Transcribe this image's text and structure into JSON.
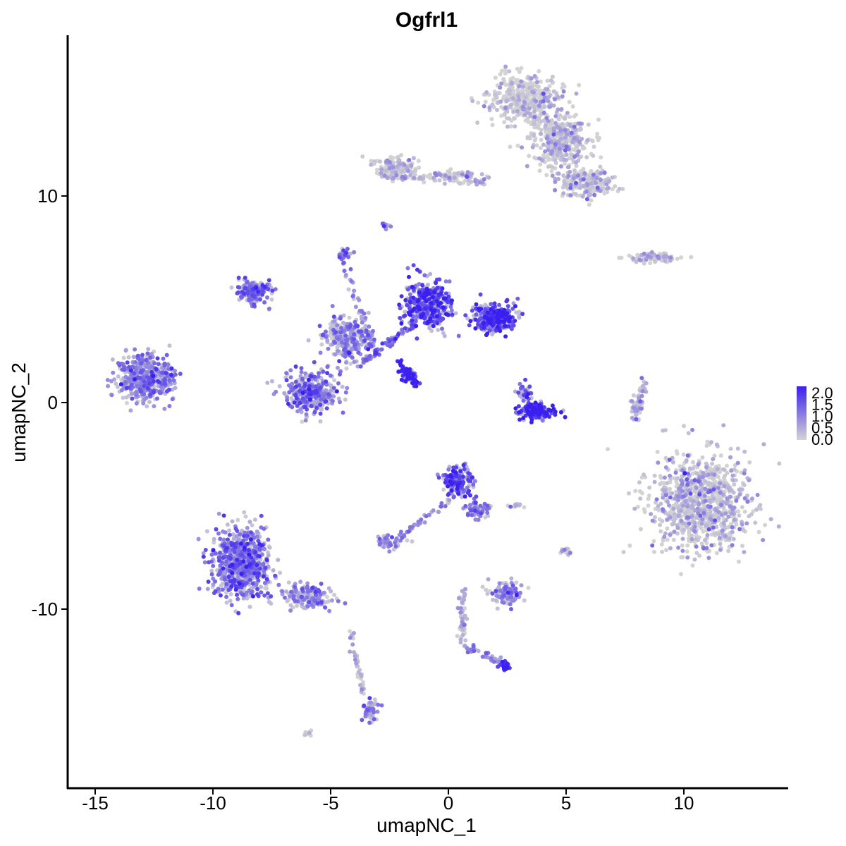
{
  "chart_data": {
    "type": "scatter",
    "title": "Ogfrl1",
    "xlabel": "umapNC_1",
    "ylabel": "umapNC_2",
    "xlim": [
      -16.5,
      14.5
    ],
    "ylim": [
      -18.5,
      17.5
    ],
    "xticks": [
      -15,
      -10,
      -5,
      0,
      5,
      10
    ],
    "xtick_labels": [
      "-15",
      "-10",
      "-5",
      "0",
      "5",
      "10"
    ],
    "yticks": [
      -10,
      0,
      10
    ],
    "ytick_labels": [
      "-10",
      "0",
      "10"
    ],
    "grid": false,
    "legend": {
      "position": "right",
      "type": "color-gradient",
      "labels": [
        "2.0",
        "1.5",
        "1.0",
        "0.5",
        "0.0"
      ],
      "values": [
        2.0,
        1.5,
        1.0,
        0.5,
        0.0
      ]
    },
    "colors": {
      "low": "#d3d3d3",
      "high": "#3a1ff0"
    },
    "expression_range": [
      0,
      2.0
    ],
    "clusters": [
      {
        "center": [
          10.8,
          -4.8
        ],
        "spread": [
          1.9,
          2.1
        ],
        "n": 900,
        "expr": 0.25
      },
      {
        "center": [
          3.3,
          14.6
        ],
        "spread": [
          1.4,
          1.1
        ],
        "n": 420,
        "expr": 0.05
      },
      {
        "center": [
          4.8,
          12.6
        ],
        "spread": [
          1.2,
          1.0
        ],
        "n": 380,
        "expr": 0.15
      },
      {
        "center": [
          5.8,
          10.6
        ],
        "spread": [
          1.0,
          0.6
        ],
        "n": 200,
        "expr": 0.3
      },
      {
        "center": [
          -2.2,
          11.4
        ],
        "spread": [
          0.8,
          0.4
        ],
        "n": 140,
        "expr": 0.05
      },
      {
        "center": [
          0.2,
          11.0
        ],
        "spread": [
          1.2,
          0.2
        ],
        "n": 60,
        "expr": 0.1
      },
      {
        "center": [
          8.8,
          7.0
        ],
        "spread": [
          0.9,
          0.2
        ],
        "n": 90,
        "expr": 0.1
      },
      {
        "center": [
          -13.0,
          1.2
        ],
        "spread": [
          0.9,
          1.0
        ],
        "n": 420,
        "expr": 0.8
      },
      {
        "center": [
          -12.0,
          1.3
        ],
        "spread": [
          0.4,
          0.8
        ],
        "n": 80,
        "expr": 0.9
      },
      {
        "center": [
          -8.2,
          5.4
        ],
        "spread": [
          0.7,
          0.5
        ],
        "n": 200,
        "expr": 1.0
      },
      {
        "center": [
          -5.8,
          0.5
        ],
        "spread": [
          1.0,
          0.9
        ],
        "n": 360,
        "expr": 1.0
      },
      {
        "center": [
          -4.3,
          3.2
        ],
        "spread": [
          1.0,
          1.0
        ],
        "n": 260,
        "expr": 0.8
      },
      {
        "center": [
          -0.9,
          4.8
        ],
        "spread": [
          0.9,
          1.0
        ],
        "n": 380,
        "expr": 1.5
      },
      {
        "center": [
          1.9,
          4.1
        ],
        "spread": [
          0.8,
          0.6
        ],
        "n": 280,
        "expr": 1.6
      },
      {
        "center": [
          -1.7,
          1.3
        ],
        "spread": [
          0.35,
          0.3
        ],
        "n": 40,
        "expr": 1.8
      },
      {
        "center": [
          -4.4,
          7.2
        ],
        "spread": [
          0.3,
          0.2
        ],
        "n": 25,
        "expr": 1.1
      },
      {
        "center": [
          3.7,
          -0.4
        ],
        "spread": [
          0.7,
          0.35
        ],
        "n": 170,
        "expr": 1.9
      },
      {
        "center": [
          3.2,
          0.5
        ],
        "spread": [
          0.3,
          0.4
        ],
        "n": 40,
        "expr": 1.4
      },
      {
        "center": [
          0.4,
          -3.8
        ],
        "spread": [
          0.6,
          0.6
        ],
        "n": 180,
        "expr": 1.3
      },
      {
        "center": [
          1.2,
          -5.2
        ],
        "spread": [
          0.5,
          0.4
        ],
        "n": 60,
        "expr": 1.0
      },
      {
        "center": [
          -2.6,
          -6.8
        ],
        "spread": [
          0.5,
          0.3
        ],
        "n": 50,
        "expr": 0.7
      },
      {
        "center": [
          2.5,
          -9.2
        ],
        "spread": [
          0.6,
          0.5
        ],
        "n": 120,
        "expr": 0.7
      },
      {
        "center": [
          -8.8,
          -7.8
        ],
        "spread": [
          1.1,
          1.5
        ],
        "n": 700,
        "expr": 1.05
      },
      {
        "center": [
          -6.0,
          -9.4
        ],
        "spread": [
          1.0,
          0.5
        ],
        "n": 180,
        "expr": 0.7
      },
      {
        "center": [
          -3.3,
          -14.9
        ],
        "spread": [
          0.3,
          0.5
        ],
        "n": 60,
        "expr": 0.7
      },
      {
        "center": [
          2.4,
          -12.7
        ],
        "spread": [
          0.25,
          0.2
        ],
        "n": 20,
        "expr": 1.7
      },
      {
        "center": [
          8.0,
          -0.3
        ],
        "spread": [
          0.25,
          0.6
        ],
        "n": 40,
        "expr": 0.2
      },
      {
        "center": [
          5.0,
          -7.2
        ],
        "spread": [
          0.2,
          0.2
        ],
        "n": 15,
        "expr": 0.2
      },
      {
        "center": [
          -6.0,
          -16.0
        ],
        "spread": [
          0.15,
          0.1
        ],
        "n": 10,
        "expr": 0.05
      },
      {
        "center": [
          2.8,
          -5.0
        ],
        "spread": [
          0.3,
          0.1
        ],
        "n": 10,
        "expr": 0.6
      },
      {
        "center": [
          -2.7,
          8.6
        ],
        "spread": [
          0.2,
          0.15
        ],
        "n": 12,
        "expr": 1.0
      }
    ],
    "filaments": [
      {
        "from": [
          -4.5,
          7.0
        ],
        "to": [
          -3.2,
          2.6
        ],
        "n": 50,
        "expr": 0.8
      },
      {
        "from": [
          -3.0,
          11.0
        ],
        "to": [
          1.6,
          10.6
        ],
        "n": 70,
        "expr": 0.1
      },
      {
        "from": [
          0.6,
          -9.0
        ],
        "to": [
          0.6,
          -11.8
        ],
        "n": 60,
        "expr": 0.2
      },
      {
        "from": [
          0.6,
          -11.8
        ],
        "to": [
          2.4,
          -12.6
        ],
        "n": 40,
        "expr": 0.6
      },
      {
        "from": [
          -4.2,
          -10.8
        ],
        "to": [
          -3.6,
          -14.0
        ],
        "n": 40,
        "expr": 0.3
      },
      {
        "from": [
          0.2,
          -4.6
        ],
        "to": [
          -2.2,
          -6.6
        ],
        "n": 40,
        "expr": 0.8
      },
      {
        "from": [
          -2.1,
          2.0
        ],
        "to": [
          -1.3,
          0.8
        ],
        "n": 40,
        "expr": 1.9
      },
      {
        "from": [
          -3.8,
          1.8
        ],
        "to": [
          -1.5,
          3.8
        ],
        "n": 70,
        "expr": 1.0
      },
      {
        "from": [
          7.8,
          -0.8
        ],
        "to": [
          8.4,
          1.2
        ],
        "n": 30,
        "expr": 0.4
      }
    ]
  }
}
